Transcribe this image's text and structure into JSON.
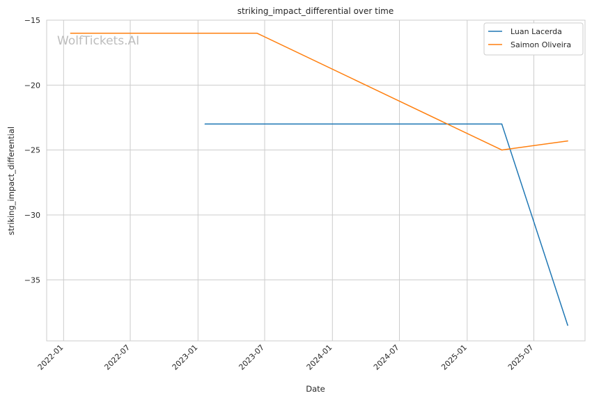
{
  "chart_data": {
    "type": "line",
    "title": "striking_impact_differential over time",
    "xlabel": "Date",
    "ylabel": "striking_impact_differential",
    "watermark": "WolfTickets.AI",
    "x_type": "date",
    "xlim": [
      "2021-11-16",
      "2025-11-17"
    ],
    "ylim": [
      -39.7,
      -15.0
    ],
    "x_ticks": [
      "2022-01",
      "2022-07",
      "2023-01",
      "2023-07",
      "2024-01",
      "2024-07",
      "2025-01",
      "2025-07"
    ],
    "y_ticks": [
      -15,
      -20,
      -25,
      -30,
      -35
    ],
    "grid": true,
    "legend": "top-right",
    "series": [
      {
        "name": "Luan Lacerda",
        "color": "#1f77b4",
        "x": [
          "2023-01-20",
          "2025-04-05",
          "2025-10-01"
        ],
        "y": [
          -23.0,
          -23.0,
          -38.5
        ]
      },
      {
        "name": "Saimon Oliveira",
        "color": "#ff7f0e",
        "x": [
          "2022-01-20",
          "2023-06-10",
          "2025-04-05",
          "2025-10-01"
        ],
        "y": [
          -16.0,
          -16.0,
          -25.0,
          -24.3
        ]
      }
    ]
  }
}
